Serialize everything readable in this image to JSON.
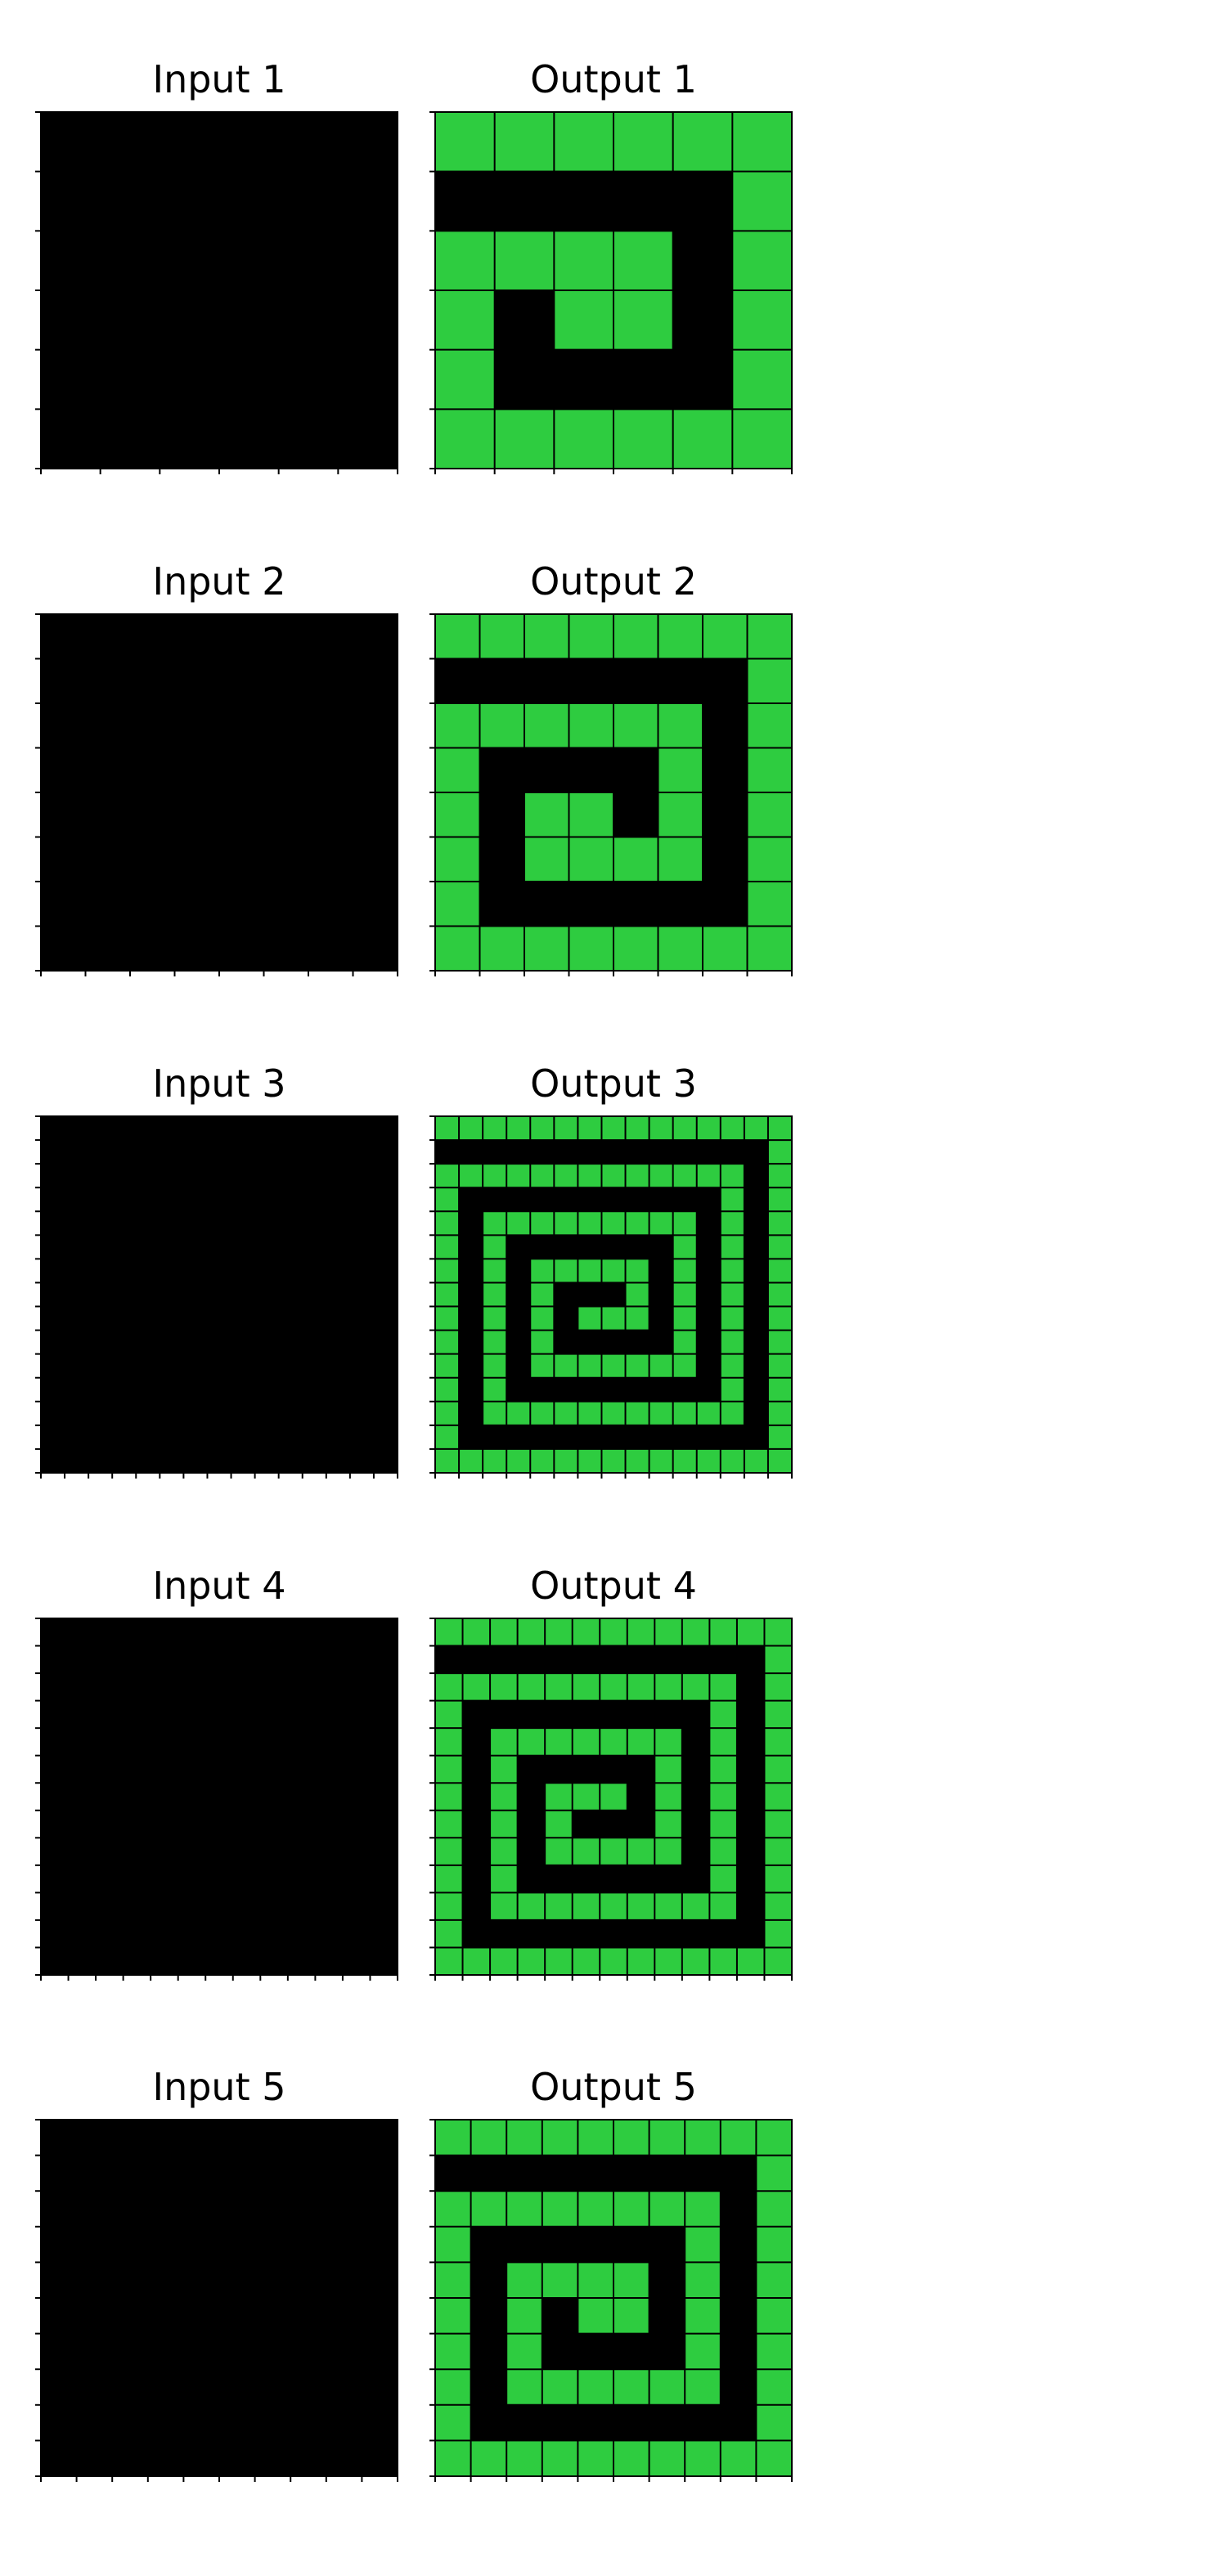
{
  "colors": {
    "background": "#000000",
    "fill": "#2ecc40",
    "gridline": "#000000",
    "page": "#ffffff"
  },
  "legend": {
    "0": "black",
    "3": "green"
  },
  "pairs": [
    {
      "input_title": "Input 1",
      "output_title": "Output 1",
      "size": 6,
      "input": [
        [
          0,
          0,
          0,
          0,
          0,
          0
        ],
        [
          0,
          0,
          0,
          0,
          0,
          0
        ],
        [
          0,
          0,
          0,
          0,
          0,
          0
        ],
        [
          0,
          0,
          0,
          0,
          0,
          0
        ],
        [
          0,
          0,
          0,
          0,
          0,
          0
        ],
        [
          0,
          0,
          0,
          0,
          0,
          0
        ]
      ],
      "output": [
        [
          3,
          3,
          3,
          3,
          3,
          3
        ],
        [
          0,
          0,
          0,
          0,
          0,
          3
        ],
        [
          3,
          3,
          3,
          3,
          0,
          3
        ],
        [
          3,
          0,
          3,
          3,
          0,
          3
        ],
        [
          3,
          0,
          0,
          0,
          0,
          3
        ],
        [
          3,
          3,
          3,
          3,
          3,
          3
        ]
      ]
    },
    {
      "input_title": "Input 2",
      "output_title": "Output 2",
      "size": 8,
      "input": [
        [
          0,
          0,
          0,
          0,
          0,
          0,
          0,
          0
        ],
        [
          0,
          0,
          0,
          0,
          0,
          0,
          0,
          0
        ],
        [
          0,
          0,
          0,
          0,
          0,
          0,
          0,
          0
        ],
        [
          0,
          0,
          0,
          0,
          0,
          0,
          0,
          0
        ],
        [
          0,
          0,
          0,
          0,
          0,
          0,
          0,
          0
        ],
        [
          0,
          0,
          0,
          0,
          0,
          0,
          0,
          0
        ],
        [
          0,
          0,
          0,
          0,
          0,
          0,
          0,
          0
        ],
        [
          0,
          0,
          0,
          0,
          0,
          0,
          0,
          0
        ]
      ],
      "output": [
        [
          3,
          3,
          3,
          3,
          3,
          3,
          3,
          3
        ],
        [
          0,
          0,
          0,
          0,
          0,
          0,
          0,
          3
        ],
        [
          3,
          3,
          3,
          3,
          3,
          3,
          0,
          3
        ],
        [
          3,
          0,
          0,
          0,
          0,
          3,
          0,
          3
        ],
        [
          3,
          0,
          3,
          3,
          0,
          3,
          0,
          3
        ],
        [
          3,
          0,
          3,
          3,
          3,
          3,
          0,
          3
        ],
        [
          3,
          0,
          0,
          0,
          0,
          0,
          0,
          3
        ],
        [
          3,
          3,
          3,
          3,
          3,
          3,
          3,
          3
        ]
      ]
    },
    {
      "input_title": "Input 3",
      "output_title": "Output 3",
      "size": 15,
      "input": [
        [
          0,
          0,
          0,
          0,
          0,
          0,
          0,
          0,
          0,
          0,
          0,
          0,
          0,
          0,
          0
        ],
        [
          0,
          0,
          0,
          0,
          0,
          0,
          0,
          0,
          0,
          0,
          0,
          0,
          0,
          0,
          0
        ],
        [
          0,
          0,
          0,
          0,
          0,
          0,
          0,
          0,
          0,
          0,
          0,
          0,
          0,
          0,
          0
        ],
        [
          0,
          0,
          0,
          0,
          0,
          0,
          0,
          0,
          0,
          0,
          0,
          0,
          0,
          0,
          0
        ],
        [
          0,
          0,
          0,
          0,
          0,
          0,
          0,
          0,
          0,
          0,
          0,
          0,
          0,
          0,
          0
        ],
        [
          0,
          0,
          0,
          0,
          0,
          0,
          0,
          0,
          0,
          0,
          0,
          0,
          0,
          0,
          0
        ],
        [
          0,
          0,
          0,
          0,
          0,
          0,
          0,
          0,
          0,
          0,
          0,
          0,
          0,
          0,
          0
        ],
        [
          0,
          0,
          0,
          0,
          0,
          0,
          0,
          0,
          0,
          0,
          0,
          0,
          0,
          0,
          0
        ],
        [
          0,
          0,
          0,
          0,
          0,
          0,
          0,
          0,
          0,
          0,
          0,
          0,
          0,
          0,
          0
        ],
        [
          0,
          0,
          0,
          0,
          0,
          0,
          0,
          0,
          0,
          0,
          0,
          0,
          0,
          0,
          0
        ],
        [
          0,
          0,
          0,
          0,
          0,
          0,
          0,
          0,
          0,
          0,
          0,
          0,
          0,
          0,
          0
        ],
        [
          0,
          0,
          0,
          0,
          0,
          0,
          0,
          0,
          0,
          0,
          0,
          0,
          0,
          0,
          0
        ],
        [
          0,
          0,
          0,
          0,
          0,
          0,
          0,
          0,
          0,
          0,
          0,
          0,
          0,
          0,
          0
        ],
        [
          0,
          0,
          0,
          0,
          0,
          0,
          0,
          0,
          0,
          0,
          0,
          0,
          0,
          0,
          0
        ],
        [
          0,
          0,
          0,
          0,
          0,
          0,
          0,
          0,
          0,
          0,
          0,
          0,
          0,
          0,
          0
        ]
      ],
      "output": [
        [
          3,
          3,
          3,
          3,
          3,
          3,
          3,
          3,
          3,
          3,
          3,
          3,
          3,
          3,
          3
        ],
        [
          0,
          0,
          0,
          0,
          0,
          0,
          0,
          0,
          0,
          0,
          0,
          0,
          0,
          0,
          3
        ],
        [
          3,
          3,
          3,
          3,
          3,
          3,
          3,
          3,
          3,
          3,
          3,
          3,
          3,
          0,
          3
        ],
        [
          3,
          0,
          0,
          0,
          0,
          0,
          0,
          0,
          0,
          0,
          0,
          0,
          3,
          0,
          3
        ],
        [
          3,
          0,
          3,
          3,
          3,
          3,
          3,
          3,
          3,
          3,
          3,
          0,
          3,
          0,
          3
        ],
        [
          3,
          0,
          3,
          0,
          0,
          0,
          0,
          0,
          0,
          0,
          3,
          0,
          3,
          0,
          3
        ],
        [
          3,
          0,
          3,
          0,
          3,
          3,
          3,
          3,
          3,
          0,
          3,
          0,
          3,
          0,
          3
        ],
        [
          3,
          0,
          3,
          0,
          3,
          0,
          0,
          0,
          3,
          0,
          3,
          0,
          3,
          0,
          3
        ],
        [
          3,
          0,
          3,
          0,
          3,
          0,
          3,
          3,
          3,
          0,
          3,
          0,
          3,
          0,
          3
        ],
        [
          3,
          0,
          3,
          0,
          3,
          0,
          0,
          0,
          0,
          0,
          3,
          0,
          3,
          0,
          3
        ],
        [
          3,
          0,
          3,
          0,
          3,
          3,
          3,
          3,
          3,
          3,
          3,
          0,
          3,
          0,
          3
        ],
        [
          3,
          0,
          3,
          0,
          0,
          0,
          0,
          0,
          0,
          0,
          0,
          0,
          3,
          0,
          3
        ],
        [
          3,
          0,
          3,
          3,
          3,
          3,
          3,
          3,
          3,
          3,
          3,
          3,
          3,
          0,
          3
        ],
        [
          3,
          0,
          0,
          0,
          0,
          0,
          0,
          0,
          0,
          0,
          0,
          0,
          0,
          0,
          3
        ],
        [
          3,
          3,
          3,
          3,
          3,
          3,
          3,
          3,
          3,
          3,
          3,
          3,
          3,
          3,
          3
        ]
      ]
    },
    {
      "input_title": "Input 4",
      "output_title": "Output 4",
      "size": 13,
      "input": [
        [
          0,
          0,
          0,
          0,
          0,
          0,
          0,
          0,
          0,
          0,
          0,
          0,
          0
        ],
        [
          0,
          0,
          0,
          0,
          0,
          0,
          0,
          0,
          0,
          0,
          0,
          0,
          0
        ],
        [
          0,
          0,
          0,
          0,
          0,
          0,
          0,
          0,
          0,
          0,
          0,
          0,
          0
        ],
        [
          0,
          0,
          0,
          0,
          0,
          0,
          0,
          0,
          0,
          0,
          0,
          0,
          0
        ],
        [
          0,
          0,
          0,
          0,
          0,
          0,
          0,
          0,
          0,
          0,
          0,
          0,
          0
        ],
        [
          0,
          0,
          0,
          0,
          0,
          0,
          0,
          0,
          0,
          0,
          0,
          0,
          0
        ],
        [
          0,
          0,
          0,
          0,
          0,
          0,
          0,
          0,
          0,
          0,
          0,
          0,
          0
        ],
        [
          0,
          0,
          0,
          0,
          0,
          0,
          0,
          0,
          0,
          0,
          0,
          0,
          0
        ],
        [
          0,
          0,
          0,
          0,
          0,
          0,
          0,
          0,
          0,
          0,
          0,
          0,
          0
        ],
        [
          0,
          0,
          0,
          0,
          0,
          0,
          0,
          0,
          0,
          0,
          0,
          0,
          0
        ],
        [
          0,
          0,
          0,
          0,
          0,
          0,
          0,
          0,
          0,
          0,
          0,
          0,
          0
        ],
        [
          0,
          0,
          0,
          0,
          0,
          0,
          0,
          0,
          0,
          0,
          0,
          0,
          0
        ],
        [
          0,
          0,
          0,
          0,
          0,
          0,
          0,
          0,
          0,
          0,
          0,
          0,
          0
        ]
      ],
      "output": [
        [
          3,
          3,
          3,
          3,
          3,
          3,
          3,
          3,
          3,
          3,
          3,
          3,
          3
        ],
        [
          0,
          0,
          0,
          0,
          0,
          0,
          0,
          0,
          0,
          0,
          0,
          0,
          3
        ],
        [
          3,
          3,
          3,
          3,
          3,
          3,
          3,
          3,
          3,
          3,
          3,
          0,
          3
        ],
        [
          3,
          0,
          0,
          0,
          0,
          0,
          0,
          0,
          0,
          0,
          3,
          0,
          3
        ],
        [
          3,
          0,
          3,
          3,
          3,
          3,
          3,
          3,
          3,
          0,
          3,
          0,
          3
        ],
        [
          3,
          0,
          3,
          0,
          0,
          0,
          0,
          0,
          3,
          0,
          3,
          0,
          3
        ],
        [
          3,
          0,
          3,
          0,
          3,
          3,
          3,
          0,
          3,
          0,
          3,
          0,
          3
        ],
        [
          3,
          0,
          3,
          0,
          3,
          0,
          0,
          0,
          3,
          0,
          3,
          0,
          3
        ],
        [
          3,
          0,
          3,
          0,
          3,
          3,
          3,
          3,
          3,
          0,
          3,
          0,
          3
        ],
        [
          3,
          0,
          3,
          0,
          0,
          0,
          0,
          0,
          0,
          0,
          3,
          0,
          3
        ],
        [
          3,
          0,
          3,
          3,
          3,
          3,
          3,
          3,
          3,
          3,
          3,
          0,
          3
        ],
        [
          3,
          0,
          0,
          0,
          0,
          0,
          0,
          0,
          0,
          0,
          0,
          0,
          3
        ],
        [
          3,
          3,
          3,
          3,
          3,
          3,
          3,
          3,
          3,
          3,
          3,
          3,
          3
        ]
      ]
    },
    {
      "input_title": "Input 5",
      "output_title": "Output 5",
      "size": 10,
      "input": [
        [
          0,
          0,
          0,
          0,
          0,
          0,
          0,
          0,
          0,
          0
        ],
        [
          0,
          0,
          0,
          0,
          0,
          0,
          0,
          0,
          0,
          0
        ],
        [
          0,
          0,
          0,
          0,
          0,
          0,
          0,
          0,
          0,
          0
        ],
        [
          0,
          0,
          0,
          0,
          0,
          0,
          0,
          0,
          0,
          0
        ],
        [
          0,
          0,
          0,
          0,
          0,
          0,
          0,
          0,
          0,
          0
        ],
        [
          0,
          0,
          0,
          0,
          0,
          0,
          0,
          0,
          0,
          0
        ],
        [
          0,
          0,
          0,
          0,
          0,
          0,
          0,
          0,
          0,
          0
        ],
        [
          0,
          0,
          0,
          0,
          0,
          0,
          0,
          0,
          0,
          0
        ],
        [
          0,
          0,
          0,
          0,
          0,
          0,
          0,
          0,
          0,
          0
        ],
        [
          0,
          0,
          0,
          0,
          0,
          0,
          0,
          0,
          0,
          0
        ]
      ],
      "output": [
        [
          3,
          3,
          3,
          3,
          3,
          3,
          3,
          3,
          3,
          3
        ],
        [
          0,
          0,
          0,
          0,
          0,
          0,
          0,
          0,
          0,
          3
        ],
        [
          3,
          3,
          3,
          3,
          3,
          3,
          3,
          3,
          0,
          3
        ],
        [
          3,
          0,
          0,
          0,
          0,
          0,
          0,
          3,
          0,
          3
        ],
        [
          3,
          0,
          3,
          3,
          3,
          3,
          0,
          3,
          0,
          3
        ],
        [
          3,
          0,
          3,
          0,
          3,
          3,
          0,
          3,
          0,
          3
        ],
        [
          3,
          0,
          3,
          0,
          0,
          0,
          0,
          3,
          0,
          3
        ],
        [
          3,
          0,
          3,
          3,
          3,
          3,
          3,
          3,
          0,
          3
        ],
        [
          3,
          0,
          0,
          0,
          0,
          0,
          0,
          0,
          0,
          3
        ],
        [
          3,
          3,
          3,
          3,
          3,
          3,
          3,
          3,
          3,
          3
        ]
      ]
    }
  ]
}
